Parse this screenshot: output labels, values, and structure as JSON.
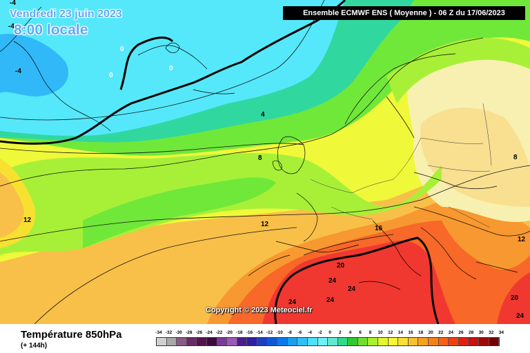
{
  "header": {
    "banner": "Ensemble ECMWF ENS  ( Moyenne )  -  06 Z du 17/06/2023",
    "date": "Vendredi 23 juin 2023",
    "time": "8:00 locale"
  },
  "copyright": "Copyright © 2023 Meteociel.fr",
  "footer": {
    "variable_title": "Température 850hPa",
    "variable_sub": "(+ 144h)"
  },
  "contour_labels": [
    {
      "id": "m4-top",
      "text": "-4",
      "color": "#000000"
    },
    {
      "id": "m4-left",
      "text": "-4",
      "color": "#000000"
    },
    {
      "id": "m4-inland",
      "text": "-4",
      "color": "#000000"
    },
    {
      "id": "zero-a",
      "text": "0",
      "color": "#ffffff"
    },
    {
      "id": "zero-b",
      "text": "0",
      "color": "#ffffff"
    },
    {
      "id": "zero-c",
      "text": "0",
      "color": "#ffffff"
    },
    {
      "id": "four",
      "text": "4",
      "color": "#000000"
    },
    {
      "id": "eight-west",
      "text": "8",
      "color": "#000000"
    },
    {
      "id": "eight-east",
      "text": "8",
      "color": "#000000"
    },
    {
      "id": "twelve-west",
      "text": "12",
      "color": "#000000"
    },
    {
      "id": "twelve-center",
      "text": "12",
      "color": "#000000"
    },
    {
      "id": "twelve-east",
      "text": "12",
      "color": "#000000"
    },
    {
      "id": "sixteen",
      "text": "16",
      "color": "#000000"
    },
    {
      "id": "twenty-center",
      "text": "20",
      "color": "#000000"
    },
    {
      "id": "twenty-east",
      "text": "20",
      "color": "#000000"
    },
    {
      "id": "t24-a",
      "text": "24",
      "color": "#000000"
    },
    {
      "id": "t24-b",
      "text": "24",
      "color": "#000000"
    },
    {
      "id": "t24-c",
      "text": "24",
      "color": "#000000"
    },
    {
      "id": "t24-d",
      "text": "24",
      "color": "#000000"
    },
    {
      "id": "t24-e",
      "text": "24",
      "color": "#000000"
    }
  ],
  "legend": {
    "ticks": [
      "-34",
      "-32",
      "-30",
      "-28",
      "-26",
      "-24",
      "-22",
      "-20",
      "-18",
      "-16",
      "-14",
      "-12",
      "-10",
      "-8",
      "-6",
      "-4",
      "-2",
      "0",
      "2",
      "4",
      "6",
      "8",
      "10",
      "12",
      "14",
      "16",
      "18",
      "20",
      "22",
      "24",
      "26",
      "28",
      "30",
      "32",
      "34"
    ],
    "colors": [
      "#d0d0d0",
      "#a8a8a8",
      "#8a5a8a",
      "#6a2a6a",
      "#5a1050",
      "#3c0a3c",
      "#7a3a9a",
      "#9a5ab8",
      "#4a1e8a",
      "#2e1ea0",
      "#1e3ec0",
      "#0a5ad8",
      "#0a7aea",
      "#18a0f0",
      "#30c0f8",
      "#4ee0fc",
      "#70f0f8",
      "#60e8d0",
      "#30d890",
      "#30c830",
      "#70e030",
      "#a8f030",
      "#e0f830",
      "#f8f830",
      "#f8e030",
      "#f8c030",
      "#f8a020",
      "#f88018",
      "#f86018",
      "#f04010",
      "#e02010",
      "#c81010",
      "#a00808",
      "#780000"
    ]
  },
  "colors": {
    "cyan_zone": "#55e8fa",
    "blue_zone": "#30b8f8",
    "teal_zone": "#30d8a0",
    "green_zone": "#70e83a",
    "lightgreen_zone": "#a8f038",
    "yellow_zone": "#f0f83a",
    "pale_yellow": "#f8f8a0",
    "cream": "#f8f0b0",
    "orange_light": "#f8c048",
    "orange": "#f89830",
    "red_orange": "#f86828",
    "red": "#f03830"
  }
}
